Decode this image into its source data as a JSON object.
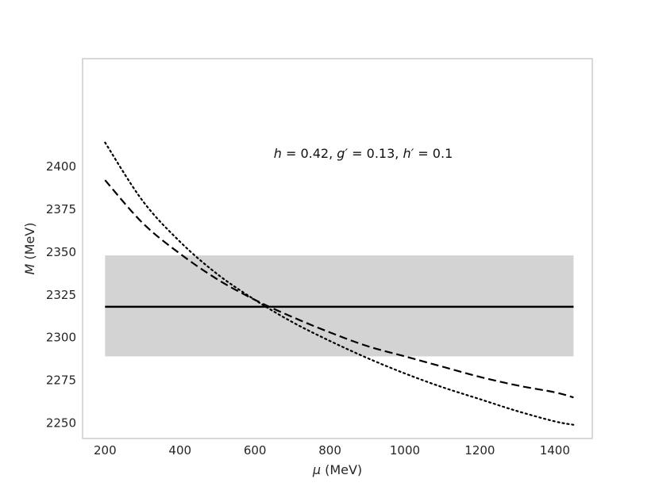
{
  "chart_data": {
    "type": "line",
    "title": "",
    "xlabel": {
      "symbol": "μ",
      "unit": " (MeV)"
    },
    "ylabel": {
      "symbol": "M",
      "unit": " (MeV)"
    },
    "xlim": [
      140,
      1500
    ],
    "ylim": [
      2241,
      2463
    ],
    "xticks": [
      200,
      400,
      600,
      800,
      1000,
      1200,
      1400
    ],
    "yticks": [
      2250,
      2275,
      2300,
      2325,
      2350,
      2375,
      2400
    ],
    "grid": false,
    "legend": "none",
    "annotation": {
      "parts": [
        {
          "text": "h",
          "italic": true
        },
        {
          "text": " = 0.42, ",
          "italic": false
        },
        {
          "text": "g′",
          "italic": true
        },
        {
          "text": " = 0.13, ",
          "italic": false
        },
        {
          "text": "h′",
          "italic": true
        },
        {
          "text": " = 0.1",
          "italic": false
        }
      ]
    },
    "band": {
      "x": [
        200,
        1450
      ],
      "y_low": 2289,
      "y_high": 2348,
      "color": "#d3d3d3"
    },
    "series": [
      {
        "style": "solid",
        "color": "#000000",
        "x": [
          200,
          1450
        ],
        "y": [
          2318,
          2318
        ]
      },
      {
        "style": "dashed",
        "color": "#000000",
        "x": [
          200,
          300,
          400,
          500,
          600,
          700,
          800,
          900,
          1000,
          1100,
          1200,
          1300,
          1400,
          1450
        ],
        "y": [
          2392,
          2367,
          2349,
          2334,
          2322,
          2312,
          2303,
          2295,
          2289,
          2283,
          2277,
          2272,
          2268,
          2265
        ]
      },
      {
        "style": "dotted",
        "color": "#000000",
        "x": [
          200,
          300,
          400,
          500,
          600,
          700,
          800,
          900,
          1000,
          1100,
          1200,
          1300,
          1400,
          1450
        ],
        "y": [
          2414,
          2380,
          2356,
          2337,
          2322,
          2309,
          2298,
          2288,
          2279,
          2271,
          2264,
          2257,
          2251,
          2249
        ]
      }
    ]
  }
}
